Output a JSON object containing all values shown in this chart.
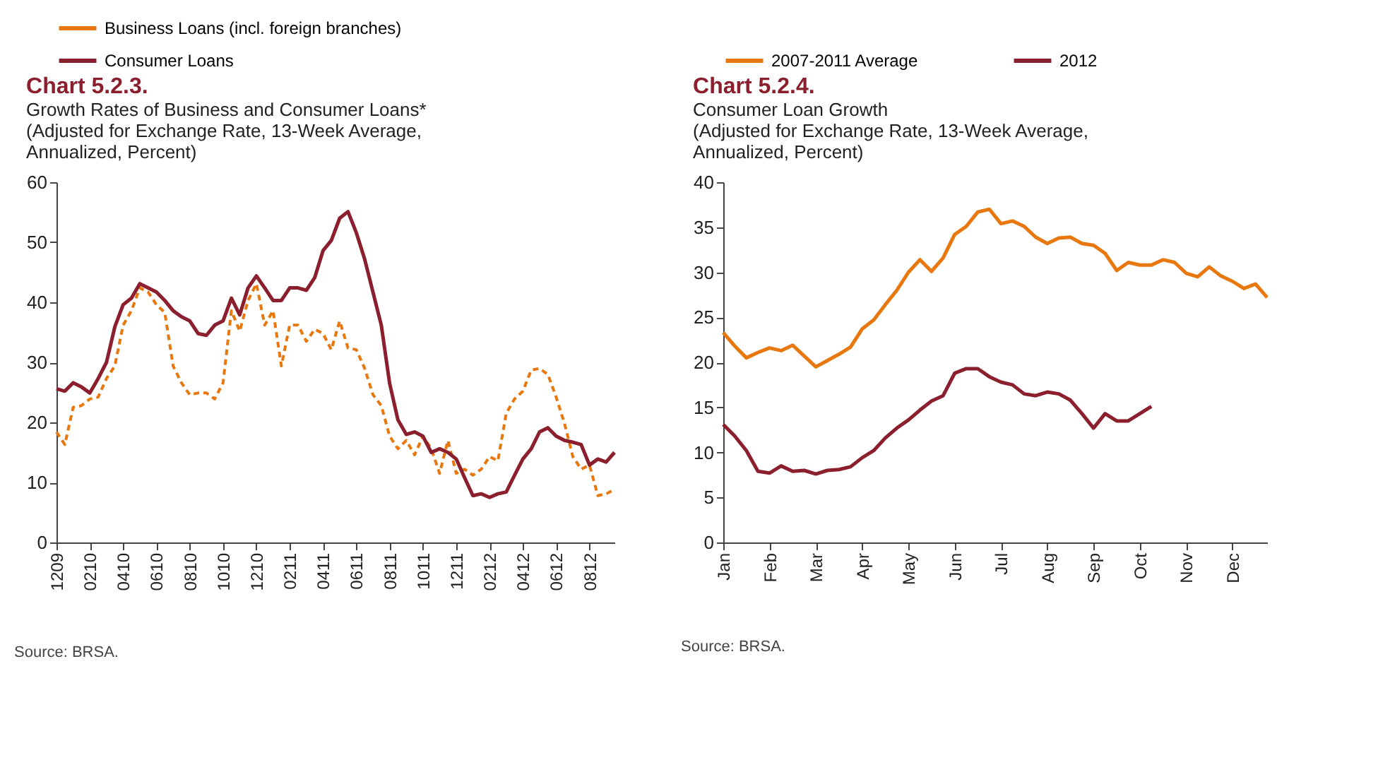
{
  "chart_data": [
    {
      "type": "line",
      "title": "Chart 5.2.3.",
      "subtitle": "Growth Rates of Business and Consumer Loans* (Adjusted for Exchange Rate, 13-Week Average, Annualized, Percent)",
      "categories": [
        "1209",
        null,
        null,
        null,
        "0210",
        null,
        null,
        null,
        "0410",
        null,
        null,
        null,
        "0610",
        null,
        null,
        null,
        "0810",
        null,
        null,
        null,
        "1010",
        null,
        null,
        null,
        "1210",
        null,
        null,
        null,
        "0211",
        null,
        null,
        null,
        "0411",
        null,
        null,
        null,
        "0611",
        null,
        null,
        null,
        "0811",
        null,
        null,
        null,
        "1011",
        null,
        null,
        null,
        "1211",
        null,
        null,
        null,
        "0212",
        null,
        null,
        null,
        "0412",
        null,
        null,
        null,
        "0612",
        null,
        null,
        null,
        "0812",
        null,
        null,
        null
      ],
      "series": [
        {
          "name": "Business Loans (incl. foreign branches)",
          "color": "#e8770e",
          "line_style": "dashed",
          "values": [
            18.4,
            16.3,
            22.5,
            22.8,
            23.9,
            24.2,
            27.3,
            29.4,
            36.2,
            38.6,
            42.4,
            41.7,
            39.6,
            38.3,
            29.4,
            26.6,
            24.6,
            24.9,
            24.9,
            23.9,
            26.6,
            38.6,
            35.2,
            40.3,
            43.1,
            36.2,
            38.6,
            29.4,
            36.2,
            36.2,
            33.5,
            35.5,
            34.8,
            32.1,
            36.9,
            32.4,
            32.1,
            29,
            24.6,
            22.8,
            17.7,
            15.6,
            17,
            14.6,
            17.7,
            15.6,
            11.5,
            17,
            11.5,
            12.2,
            11.2,
            12.2,
            14.3,
            13.6,
            21.5,
            23.9,
            25.2,
            28.7,
            29,
            28,
            24.2,
            19.8,
            14.3,
            12.2,
            12.9,
            7.8,
            8.1,
            8.8
          ]
        },
        {
          "name": "Consumer Loans",
          "color": "#8b1f2e",
          "line_style": "solid",
          "values": [
            25.6,
            25.2,
            26.6,
            25.9,
            24.9,
            27.3,
            30,
            35.9,
            39.6,
            40.7,
            43.1,
            42.4,
            41.7,
            40.3,
            38.6,
            37.6,
            36.9,
            34.8,
            34.5,
            36.2,
            36.9,
            40.7,
            37.9,
            42.4,
            44.4,
            42.4,
            40.3,
            40.3,
            42.4,
            42.4,
            42,
            44.1,
            48.6,
            50.3,
            54,
            55.1,
            51.6,
            47.2,
            41.7,
            36.2,
            26.5,
            20.4,
            18,
            18.4,
            17.7,
            15,
            15.6,
            15,
            13.9,
            10.8,
            7.8,
            8.1,
            7.5,
            8.1,
            8.4,
            11.2,
            13.9,
            15.6,
            18.4,
            19.1,
            17.7,
            17,
            16.7,
            16.3,
            12.9,
            13.9,
            13.4,
            15
          ]
        }
      ],
      "ylim": [
        0,
        60
      ],
      "yticks": [
        0,
        10,
        20,
        30,
        40,
        50,
        60
      ],
      "grid": false,
      "legend": "top",
      "annotations": [
        "Source: BRSA."
      ]
    },
    {
      "type": "line",
      "title": "Chart 5.2.4.",
      "subtitle": "Consumer Loan Growth (Adjusted for Exchange Rate, 13-Week Average, Annualized, Percent)",
      "categories": [
        "Jan",
        null,
        null,
        null,
        "Feb",
        null,
        null,
        null,
        "Mar",
        null,
        null,
        null,
        "Apr",
        null,
        null,
        null,
        "May",
        null,
        null,
        null,
        "Jun",
        null,
        null,
        null,
        "Jul",
        null,
        null,
        null,
        "Aug",
        null,
        null,
        null,
        "Sep",
        null,
        null,
        null,
        "Oct",
        null,
        null,
        null,
        "Nov",
        null,
        null,
        null,
        "Dec",
        null,
        null,
        null
      ],
      "series": [
        {
          "name": "2007-2011 Average",
          "color": "#e8770e",
          "line_style": "solid",
          "values": [
            23.3,
            21.8,
            20.5,
            21.1,
            21.6,
            21.3,
            21.9,
            20.7,
            19.5,
            20.2,
            20.9,
            21.7,
            23.7,
            24.7,
            26.4,
            28,
            30,
            31.4,
            30.1,
            31.6,
            34.2,
            35.1,
            36.7,
            37,
            35.4,
            35.7,
            35.1,
            33.9,
            33.2,
            33.8,
            33.9,
            33.2,
            33,
            32.1,
            30.2,
            31.1,
            30.8,
            30.8,
            31.4,
            31.1,
            29.9,
            29.5,
            30.6,
            29.6,
            29,
            28.2,
            28.7,
            27.2
          ]
        },
        {
          "name": "2012",
          "color": "#8b1f2e",
          "line_style": "solid",
          "values": [
            13.1,
            11.8,
            10.2,
            7.9,
            7.7,
            8.5,
            7.9,
            8,
            7.6,
            8,
            8.1,
            8.4,
            9.4,
            10.2,
            11.6,
            12.7,
            13.6,
            14.7,
            15.7,
            16.3,
            18.8,
            19.3,
            19.3,
            18.4,
            17.8,
            17.5,
            16.5,
            16.3,
            16.7,
            16.5,
            15.8,
            14.3,
            12.7,
            14.3,
            13.5,
            13.5,
            14.3,
            15.1,
            null,
            null,
            null,
            null,
            null,
            null,
            null,
            null,
            null,
            null
          ]
        }
      ],
      "ylim": [
        0,
        40
      ],
      "yticks": [
        0,
        5,
        10,
        15,
        20,
        25,
        30,
        35,
        40
      ],
      "grid": false,
      "legend": "top",
      "annotations": [
        "Source: BRSA."
      ]
    }
  ]
}
